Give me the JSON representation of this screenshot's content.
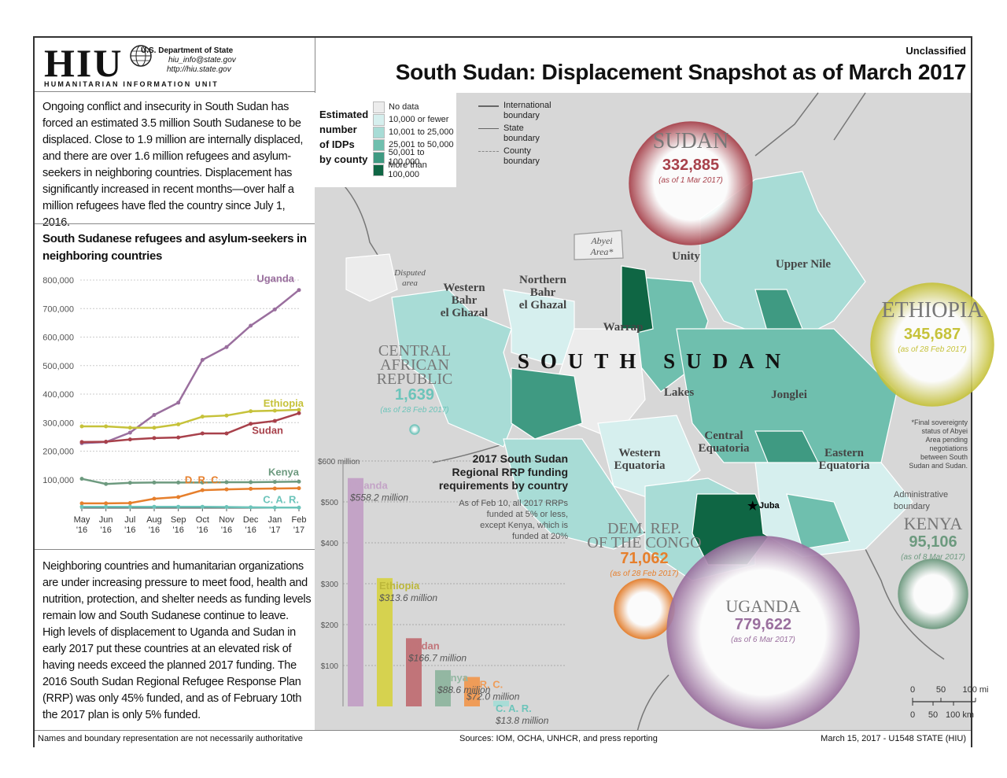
{
  "header": {
    "logo_text": "HIU",
    "logo_subtitle": "HUMANITARIAN INFORMATION UNIT",
    "department": "U.S. Department of State",
    "email": "hiu_info@state.gov",
    "website": "http://hiu.state.gov",
    "classification": "Unclassified",
    "title": "South Sudan: Displacement Snapshot as of March 2017"
  },
  "intro_text": "Ongoing conflict and insecurity in South Sudan has forced an estimated 3.5 million South Sudanese to be displaced. Close to 1.9 million are internally displaced, and there are over 1.6 million refugees and asylum-seekers in neighboring countries. Displacement has significantly increased in recent months—over half a million refugees have fled the country since July 1, 2016.",
  "outro_text": "Neighboring countries and humanitarian organizations are under increasing pressure to meet food, health and nutrition, protection, and shelter needs as funding levels remain low and South Sudanese continue to leave. High levels of displacement to Uganda and Sudan in early 2017 put these countries at an elevated risk of having needs exceed the planned 2017 funding. The 2016 South Sudan Regional Refugee Response Plan (RRP) was only 45% funded, and as of February 10th the 2017 plan is only 5% funded.",
  "footer": {
    "disclaimer": "Names and boundary representation are not necessarily authoritative",
    "sources": "Sources: IOM, OCHA, UNHCR, and press reporting",
    "date_id": "March 15, 2017 - U1548 STATE (HIU)"
  },
  "legend": {
    "title": [
      "Estimated",
      "number",
      "of IDPs",
      "by county"
    ],
    "classes": [
      {
        "label": "No data",
        "color": "#ececec"
      },
      {
        "label": "10,000 or fewer",
        "color": "#d6efee"
      },
      {
        "label": "10,001 to 25,000",
        "color": "#a8dcd6"
      },
      {
        "label": "25,001 to 50,000",
        "color": "#6fbfae"
      },
      {
        "label": "50,001 to 100,000",
        "color": "#3f9a82"
      },
      {
        "label": "More than 100,000",
        "color": "#0f6644"
      }
    ],
    "lines": [
      {
        "label": [
          "International",
          "boundary"
        ],
        "style": "intl"
      },
      {
        "label": [
          "State",
          "boundary"
        ],
        "style": "state"
      },
      {
        "label": [
          "County",
          "boundary"
        ],
        "style": "county"
      }
    ]
  },
  "map": {
    "country_label": "SOUTH SUDAN",
    "disputed_label": [
      "Disputed",
      "area"
    ],
    "abyei_label": [
      "Abyei",
      "Area*"
    ],
    "abyei_note": [
      "*Final sovereignty",
      "status of Abyei",
      "Area pending",
      "negotiations",
      "between South",
      "Sudan and Sudan."
    ],
    "admin_boundary_label": [
      "Administrative",
      "boundary"
    ],
    "capital": "Juba",
    "states": [
      {
        "name": [
          "Western",
          "Bahr",
          "el Ghazal"
        ]
      },
      {
        "name": [
          "Northern",
          "Bahr",
          "el Ghazal"
        ]
      },
      {
        "name": [
          "Unity"
        ]
      },
      {
        "name": [
          "Upper Nile"
        ]
      },
      {
        "name": [
          "Warrap"
        ]
      },
      {
        "name": [
          "Lakes"
        ]
      },
      {
        "name": [
          "Jonglei"
        ]
      },
      {
        "name": [
          "Western",
          "Equatoria"
        ]
      },
      {
        "name": [
          "Central",
          "Equatoria"
        ]
      },
      {
        "name": [
          "Eastern",
          "Equatoria"
        ]
      }
    ],
    "countries": [
      {
        "name": [
          "SUDAN"
        ],
        "value": "332,885",
        "date": "(as of 1 Mar 2017)",
        "color": "#a8414b",
        "refugees": 332885
      },
      {
        "name": [
          "ETHIOPIA"
        ],
        "value": "345,687",
        "date": "(as of 28 Feb 2017)",
        "color": "#c6c23a",
        "refugees": 345687
      },
      {
        "name": [
          "CENTRAL",
          "AFRICAN",
          "REPUBLIC"
        ],
        "value": "1,639",
        "date": "(as of 28 Feb 2017)",
        "color": "#6cc4ba",
        "refugees": 1639
      },
      {
        "name": [
          "DEM. REP.",
          "OF THE CONGO"
        ],
        "value": "71,062",
        "date": "(as of 28 Feb 2017)",
        "color": "#e67f2c",
        "refugees": 71062
      },
      {
        "name": [
          "KENYA"
        ],
        "value": "95,106",
        "date": "(as of 8 Mar 2017)",
        "color": "#6d9a7f",
        "refugees": 95106
      },
      {
        "name": [
          "UGANDA"
        ],
        "value": "779,622",
        "date": "(as of 6 Mar 2017)",
        "color": "#9a6f9e",
        "refugees": 779622
      }
    ],
    "scale": {
      "mi_ticks": [
        "0",
        "50",
        "100 mi"
      ],
      "km_ticks": [
        "0",
        "50",
        "100 km"
      ]
    }
  },
  "chart_data": [
    {
      "type": "line",
      "title": "South Sudanese refugees and asylum-seekers in neighboring countries",
      "x": [
        "May '16",
        "Jun '16",
        "Jul '16",
        "Aug '16",
        "Sep '16",
        "Oct '16",
        "Nov '16",
        "Dec '16",
        "Jan '17",
        "Feb '17"
      ],
      "ylim": [
        0,
        800000
      ],
      "yticks": [
        "800,000",
        "700,000",
        "600,000",
        "500,000",
        "400,000",
        "300,000",
        "200,000",
        "100,000"
      ],
      "series": [
        {
          "name": "Uganda",
          "color": "#9a6f9e",
          "values": [
            228000,
            232000,
            265000,
            327000,
            370000,
            520000,
            565000,
            640000,
            697000,
            765000
          ]
        },
        {
          "name": "Ethiopia",
          "color": "#c6c23a",
          "values": [
            287000,
            287000,
            282000,
            282000,
            294000,
            321000,
            325000,
            340000,
            342000,
            345000
          ]
        },
        {
          "name": "Sudan",
          "color": "#a8414b",
          "values": [
            232000,
            233000,
            241000,
            246000,
            248000,
            262000,
            262000,
            296000,
            306000,
            333000
          ]
        },
        {
          "name": "Kenya",
          "color": "#6d9a7f",
          "values": [
            103000,
            85000,
            89000,
            90000,
            90000,
            90000,
            91000,
            91000,
            92000,
            93000
          ]
        },
        {
          "name": "D. R. C.",
          "color": "#e67f2c",
          "values": [
            17000,
            17000,
            18000,
            33000,
            39000,
            63000,
            66000,
            68000,
            69000,
            70000
          ]
        },
        {
          "name": "C. A. R.",
          "color": "#6cc4ba",
          "values": [
            5000,
            5000,
            5000,
            5000,
            5000,
            5000,
            4000,
            3000,
            2000,
            2000
          ]
        }
      ]
    },
    {
      "type": "bar",
      "title": "2017 South Sudan Regional RRP funding requirements by country",
      "note": [
        "As of Feb 10, all 2017 RRPs",
        "funded at 5% or less,",
        "except Kenya, which is",
        "funded at 20%"
      ],
      "title_lines": [
        "2017 South Sudan",
        "Regional RRP funding",
        "requirements by country"
      ],
      "ylim": [
        0,
        600
      ],
      "yticks": [
        "$600 million",
        "$500",
        "$400",
        "$300",
        "$200",
        "$100"
      ],
      "categories": [
        "Uganda",
        "Ethiopia",
        "Sudan",
        "Kenya",
        "D. R. C.",
        "C. A. R."
      ],
      "value_labels": [
        "$558.2 million",
        "$313.6 million",
        "$166.7 million",
        "$88.6 million",
        "$72.0 million",
        "$13.8 million"
      ],
      "values": [
        558.2,
        313.6,
        166.7,
        88.6,
        72.0,
        13.8
      ],
      "colors": [
        "#c3a3c6",
        "#d6d24f",
        "#c17479",
        "#93b7a2",
        "#ef9c58",
        "#a9dcd6"
      ]
    }
  ]
}
